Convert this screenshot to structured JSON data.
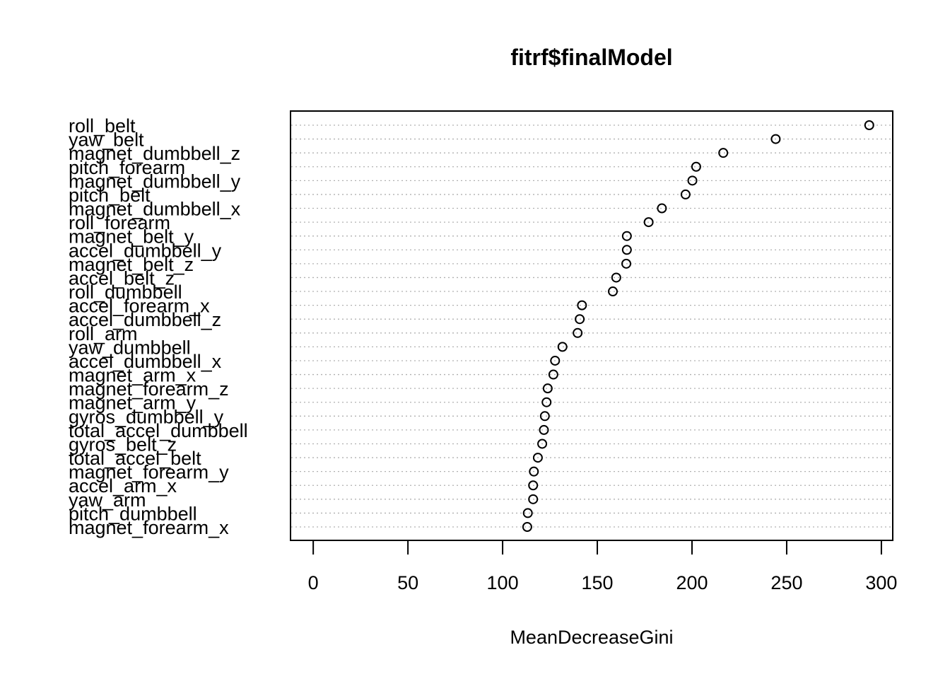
{
  "chart_data": {
    "type": "dotchart",
    "title": "fitrf$finalModel",
    "xlabel": "MeanDecreaseGini",
    "ylabel": "",
    "xlim": [
      -12,
      306
    ],
    "xticks": [
      0,
      50,
      100,
      150,
      200,
      250,
      300
    ],
    "grid": "dotted horizontal lines",
    "variables": [
      "roll_belt",
      "yaw_belt",
      "magnet_dumbbell_z",
      "pitch_forearm",
      "magnet_dumbbell_y",
      "pitch_belt",
      "magnet_dumbbell_x",
      "roll_forearm",
      "magnet_belt_y",
      "accel_dumbbell_y",
      "magnet_belt_z",
      "accel_belt_z",
      "roll_dumbbell",
      "accel_forearm_x",
      "accel_dumbbell_z",
      "roll_arm",
      "yaw_dumbbell",
      "accel_dumbbell_x",
      "magnet_arm_x",
      "magnet_forearm_z",
      "magnet_arm_y",
      "gyros_dumbbell_y",
      "total_accel_dumbbell",
      "gyros_belt_z",
      "total_accel_belt",
      "magnet_forearm_y",
      "accel_arm_x",
      "yaw_arm",
      "pitch_dumbbell",
      "magnet_forearm_x"
    ],
    "values": [
      293.6,
      244.2,
      216.5,
      202.2,
      200.2,
      196.6,
      184.1,
      177.1,
      165.6,
      165.6,
      165.3,
      160.0,
      158.2,
      141.9,
      140.7,
      139.6,
      131.6,
      127.7,
      126.8,
      123.8,
      123.2,
      122.3,
      121.8,
      120.9,
      118.6,
      116.5,
      116.1,
      116.1,
      113.3,
      113.0
    ]
  }
}
